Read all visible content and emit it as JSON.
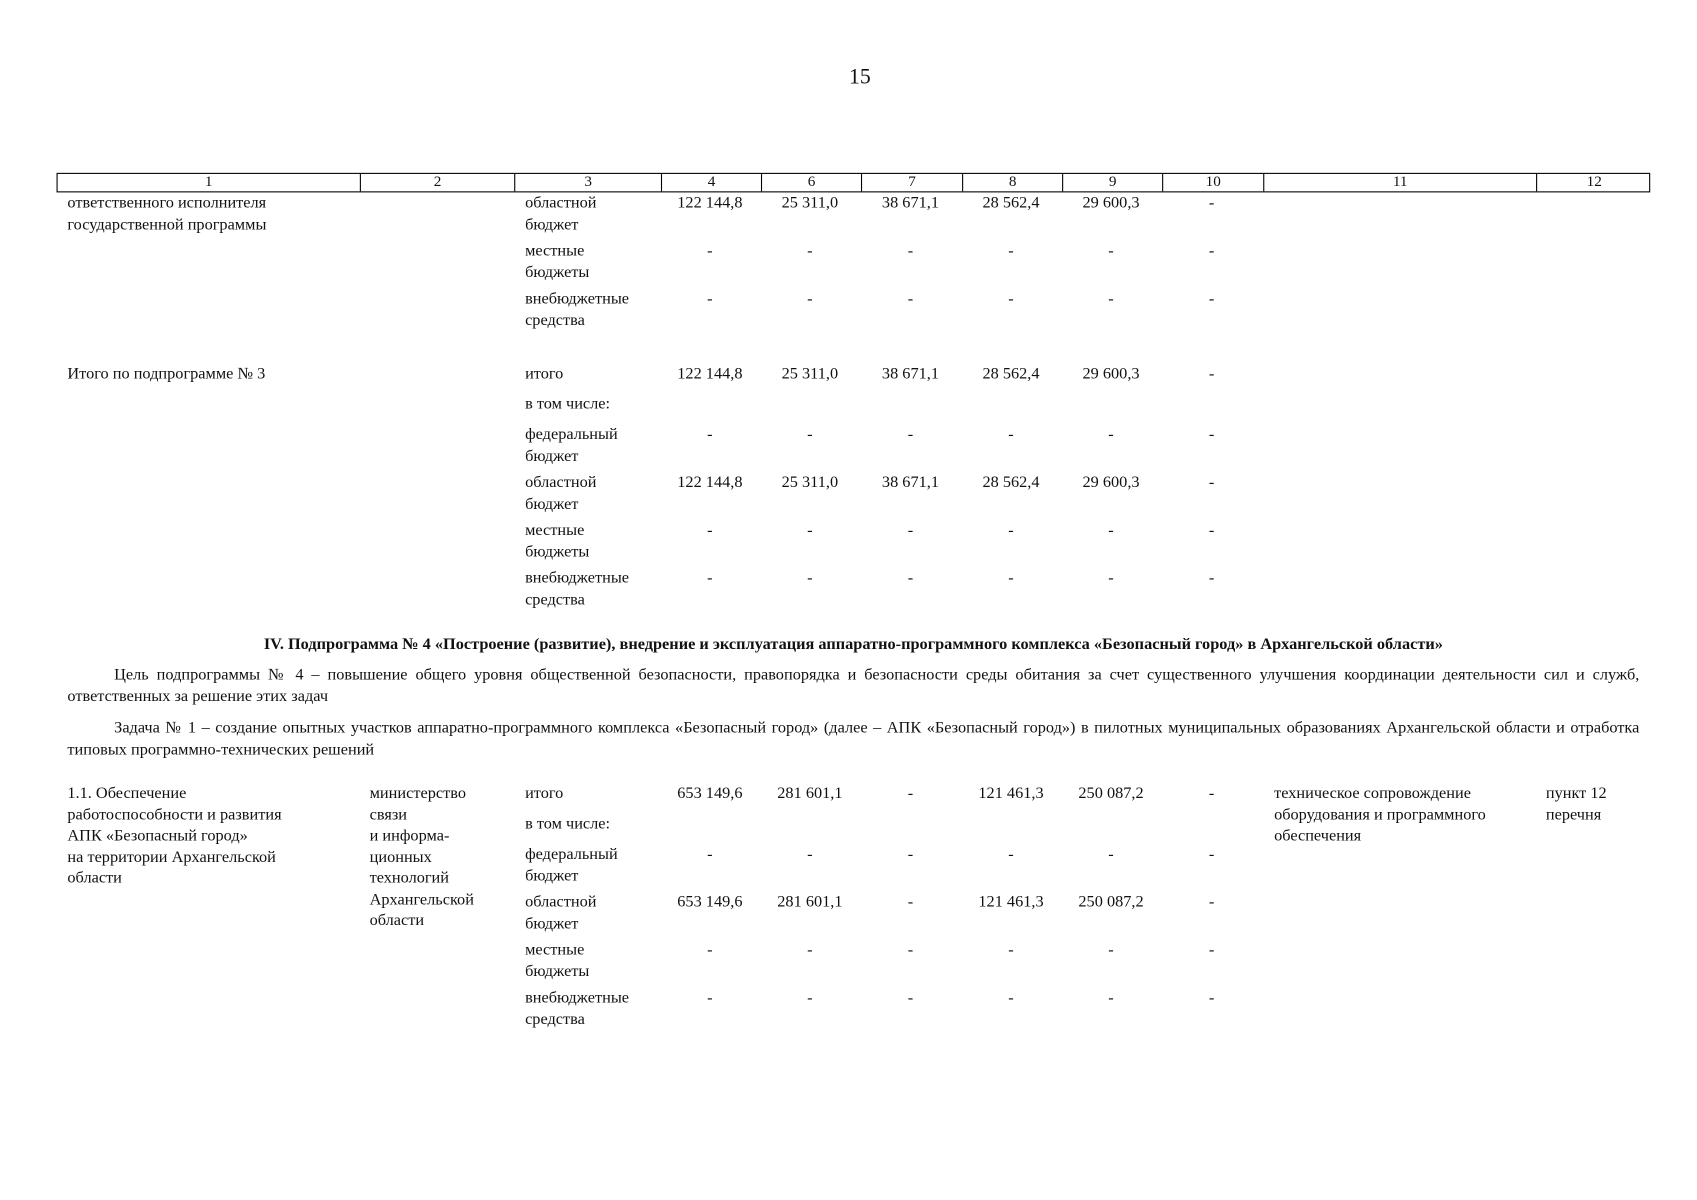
{
  "page_number": "15",
  "header": [
    "1",
    "2",
    "3",
    "4",
    "6",
    "7",
    "8",
    "9",
    "10",
    "11",
    "12"
  ],
  "group_a": {
    "col1": "ответственного исполнителя\nгосударственной программы",
    "rows": [
      {
        "label": "областной\nбюджет",
        "values": [
          "122 144,8",
          "25 311,0",
          "38 671,1",
          "28 562,4",
          "29 600,3",
          "-"
        ]
      },
      {
        "label": "местные\nбюджеты",
        "values": [
          "-",
          "-",
          "-",
          "-",
          "-",
          "-"
        ]
      },
      {
        "label": "внебюджетные\nсредства",
        "values": [
          "-",
          "-",
          "-",
          "-",
          "-",
          "-"
        ]
      }
    ]
  },
  "group_b": {
    "col1": "Итого по подпрограмме № 3",
    "rows": [
      {
        "label": "итого",
        "values": [
          "122 144,8",
          "25 311,0",
          "38 671,1",
          "28 562,4",
          "29 600,3",
          "-"
        ]
      },
      {
        "label": "в том числе:",
        "values": []
      },
      {
        "label": "федеральный\nбюджет",
        "values": [
          "-",
          "-",
          "-",
          "-",
          "-",
          "-"
        ]
      },
      {
        "label": "областной\nбюджет",
        "values": [
          "122 144,8",
          "25 311,0",
          "38 671,1",
          "28 562,4",
          "29 600,3",
          "-"
        ]
      },
      {
        "label": "местные\nбюджеты",
        "values": [
          "-",
          "-",
          "-",
          "-",
          "-",
          "-"
        ]
      },
      {
        "label": "внебюджетные\nсредства",
        "values": [
          "-",
          "-",
          "-",
          "-",
          "-",
          "-"
        ]
      }
    ]
  },
  "section": {
    "title": "IV. Подпрограмма № 4 «Построение (развитие), внедрение и эксплуатация аппаратно-программного комплекса «Безопасный город» в Архангельской области»",
    "goal": "Цель подпрограммы № 4 – повышение общего уровня общественной безопасности, правопорядка и безопасности среды обитания за счет существенного улучшения координации деятельности сил и служб, ответственных за решение этих задач",
    "task": "Задача № 1 – создание опытных участков аппаратно-программного комплекса «Безопасный город» (далее – АПК «Безопасный город») в пилотных муниципальных образованиях Архангельской области и отработка типовых программно-технических решений"
  },
  "group_c": {
    "col1": "1.1. Обеспечение\nработоспособности и развития\nАПК «Безопасный город»\nна территории Архангельской\nобласти",
    "col2": "министерство\nсвязи\nи информа-\nционных\nтехнологий\nАрхангельской\nобласти",
    "col11": "техническое сопровождение\nоборудования и программного\nобеспечения",
    "col12": "пункт 12\nперечня",
    "rows": [
      {
        "label": "итого",
        "values": [
          "653 149,6",
          "281 601,1",
          "-",
          "121 461,3",
          "250 087,2",
          "-"
        ]
      },
      {
        "label": "в том числе:",
        "values": []
      },
      {
        "label": "федеральный\nбюджет",
        "values": [
          "-",
          "-",
          "-",
          "-",
          "-",
          "-"
        ]
      },
      {
        "label": "областной\nбюджет",
        "values": [
          "653 149,6",
          "281 601,1",
          "-",
          "121 461,3",
          "250 087,2",
          "-"
        ]
      },
      {
        "label": "местные\nбюджеты",
        "values": [
          "-",
          "-",
          "-",
          "-",
          "-",
          "-"
        ]
      },
      {
        "label": "внебюджетные\nсредства",
        "values": [
          "-",
          "-",
          "-",
          "-",
          "-",
          "-"
        ]
      }
    ]
  }
}
